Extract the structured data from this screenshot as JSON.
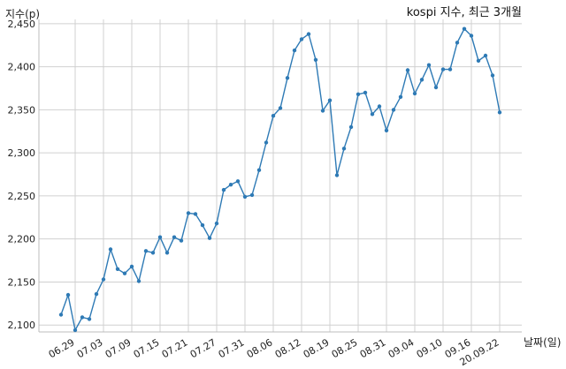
{
  "chart_data": {
    "type": "line",
    "title": "kospi 지수, 최근 3개월",
    "ylabel": "지수(p)",
    "xlabel": "날짜(일)",
    "ylim": [
      2092,
      2455
    ],
    "y_ticks": [
      2100,
      2150,
      2200,
      2250,
      2300,
      2350,
      2400,
      2450
    ],
    "y_tick_labels": [
      "2,100",
      "2,150",
      "2,200",
      "2,250",
      "2,300",
      "2,350",
      "2,400",
      "2,450"
    ],
    "x_ticks": [
      "06.29",
      "07.03",
      "07.09",
      "07.15",
      "07.21",
      "07.27",
      "07.31",
      "08.06",
      "08.12",
      "08.19",
      "08.25",
      "08.31",
      "09.04",
      "09.10",
      "09.16",
      "20.09.22"
    ],
    "grid": true,
    "series": [
      {
        "color": "#2e7ab5",
        "values": [
          2112,
          2135,
          2094,
          2109,
          2107,
          2136,
          2153,
          2188,
          2165,
          2160,
          2168,
          2151,
          2186,
          2184,
          2202,
          2184,
          2202,
          2198,
          2230,
          2229,
          2216,
          2201,
          2218,
          2257,
          2263,
          2267,
          2249,
          2251,
          2280,
          2312,
          2343,
          2352,
          2387,
          2419,
          2432,
          2438,
          2408,
          2349,
          2361,
          2274,
          2305,
          2330,
          2368,
          2370,
          2345,
          2354,
          2326,
          2350,
          2365,
          2396,
          2369,
          2385,
          2402,
          2376,
          2397,
          2397,
          2428,
          2444,
          2436,
          2407,
          2413,
          2390,
          2347
        ]
      }
    ]
  }
}
